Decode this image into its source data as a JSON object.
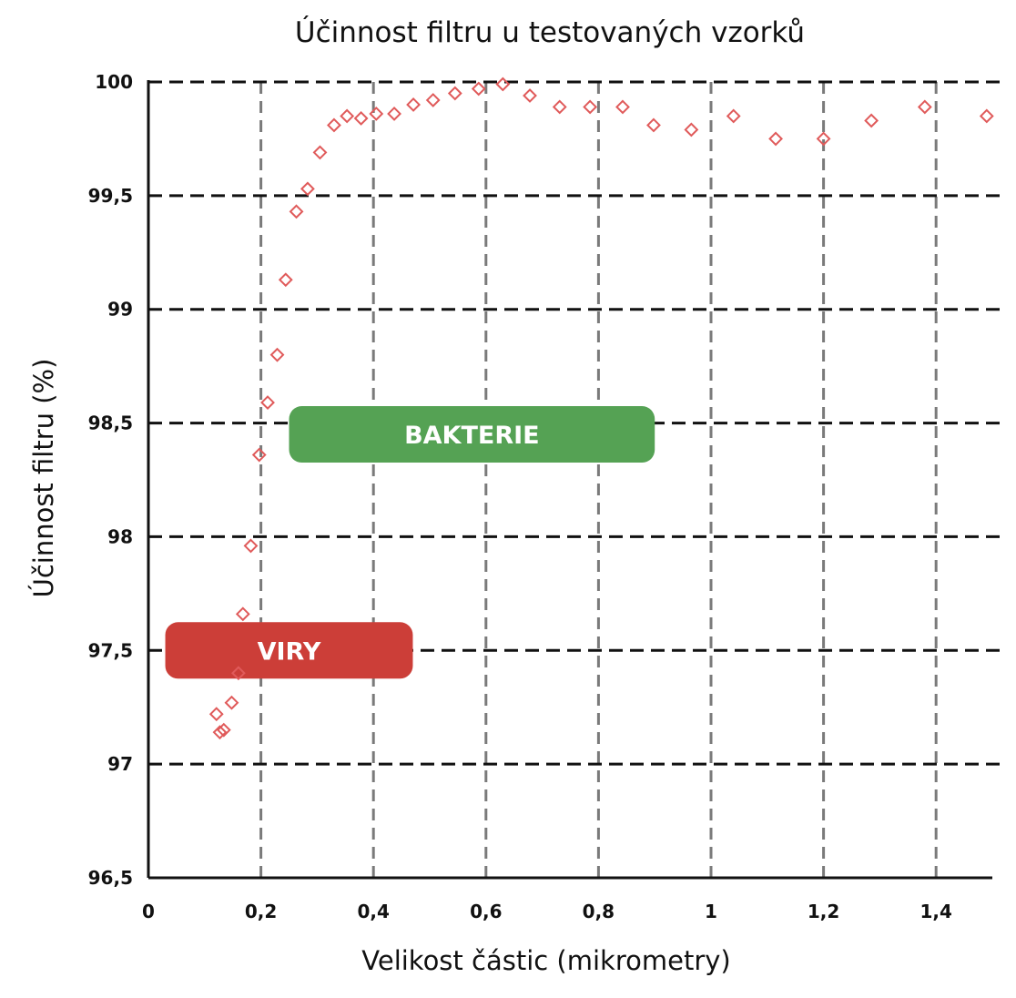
{
  "chart_data": {
    "type": "scatter",
    "title": "Účinnost filtru u testovaných vzorků",
    "xlabel": "Velikost částic (mikrometry)",
    "ylabel": "Účinnost filtru (%)",
    "xlim": [
      0,
      1.5
    ],
    "ylim": [
      96.5,
      100
    ],
    "x_ticks": [
      0,
      0.2,
      0.4,
      0.6,
      0.8,
      1.0,
      1.2,
      1.4
    ],
    "x_tick_labels": [
      "0",
      "0,2",
      "0,4",
      "0,6",
      "0,8",
      "1",
      "1,2",
      "1,4"
    ],
    "y_ticks": [
      96.5,
      97,
      97.5,
      98,
      98.5,
      99,
      99.5,
      100
    ],
    "y_tick_labels": [
      "96,5",
      "97",
      "97,5",
      "98",
      "98,5",
      "99",
      "99,5",
      "100"
    ],
    "grid": true,
    "marker": "hollow-diamond",
    "marker_color": "#e05a5a",
    "series": [
      {
        "x": [
          0.121,
          0.127,
          0.134,
          0.148,
          0.16,
          0.168,
          0.182,
          0.197,
          0.212,
          0.229,
          0.244,
          0.263,
          0.283,
          0.305,
          0.33,
          0.353,
          0.378,
          0.405,
          0.437,
          0.471,
          0.506,
          0.545,
          0.587,
          0.63,
          0.678,
          0.731,
          0.785,
          0.843,
          0.898,
          0.965,
          1.04,
          1.115,
          1.2,
          1.285,
          1.38,
          1.49
        ],
        "y": [
          97.22,
          97.14,
          97.15,
          97.27,
          97.4,
          97.66,
          97.96,
          98.36,
          98.59,
          98.8,
          99.13,
          99.43,
          99.53,
          99.69,
          99.81,
          99.85,
          99.84,
          99.86,
          99.86,
          99.9,
          99.92,
          99.95,
          99.97,
          99.99,
          99.94,
          99.89,
          99.89,
          99.89,
          99.81,
          99.79,
          99.85,
          99.75,
          99.75,
          99.83,
          99.89,
          99.85
        ]
      }
    ],
    "bands": [
      {
        "label": "BAKTERIE",
        "color": "#55a254",
        "x_start": 0.25,
        "x_end": 0.9,
        "y_center": 98.45
      },
      {
        "label": "VIRY",
        "color": "#cc3e38",
        "x_start": 0.03,
        "x_end": 0.47,
        "y_center": 97.5
      }
    ]
  }
}
